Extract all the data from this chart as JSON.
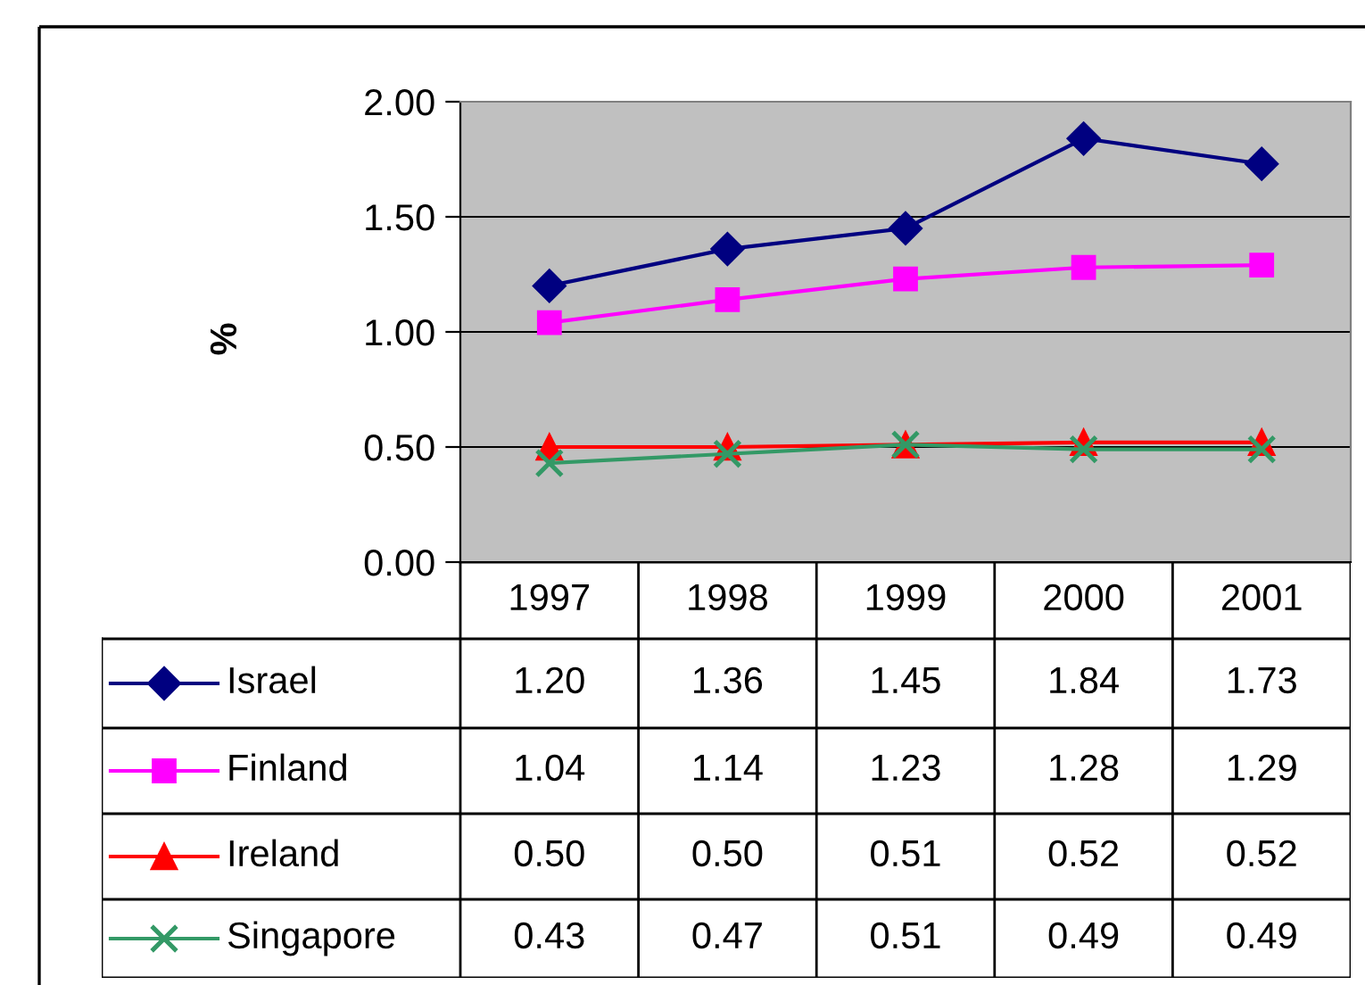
{
  "chart_data": {
    "type": "line",
    "ylabel": "%",
    "categories": [
      "1997",
      "1998",
      "1999",
      "2000",
      "2001"
    ],
    "series": [
      {
        "name": "Israel",
        "color": "#000080",
        "marker": "diamond",
        "values": [
          1.2,
          1.36,
          1.45,
          1.84,
          1.73
        ],
        "value_labels": [
          "1.20",
          "1.36",
          "1.45",
          "1.84",
          "1.73"
        ]
      },
      {
        "name": "Finland",
        "color": "#ff00ff",
        "marker": "square",
        "values": [
          1.04,
          1.14,
          1.23,
          1.28,
          1.29
        ],
        "value_labels": [
          "1.04",
          "1.14",
          "1.23",
          "1.28",
          "1.29"
        ]
      },
      {
        "name": "Ireland",
        "color": "#ff0000",
        "marker": "triangle",
        "values": [
          0.5,
          0.5,
          0.51,
          0.52,
          0.52
        ],
        "value_labels": [
          "0.50",
          "0.50",
          "0.51",
          "0.52",
          "0.52"
        ]
      },
      {
        "name": "Singapore",
        "color": "#339966",
        "marker": "cross",
        "values": [
          0.43,
          0.47,
          0.51,
          0.49,
          0.49
        ],
        "value_labels": [
          "0.43",
          "0.47",
          "0.51",
          "0.49",
          "0.49"
        ]
      }
    ],
    "ylim": [
      0,
      2
    ],
    "yticks": [
      {
        "value": 0,
        "label": "0.00"
      },
      {
        "value": 0.5,
        "label": "0.50"
      },
      {
        "value": 1,
        "label": "1.00"
      },
      {
        "value": 1.5,
        "label": "1.50"
      },
      {
        "value": 2,
        "label": "2.00"
      }
    ],
    "grid": "y",
    "legend": "bottom"
  }
}
